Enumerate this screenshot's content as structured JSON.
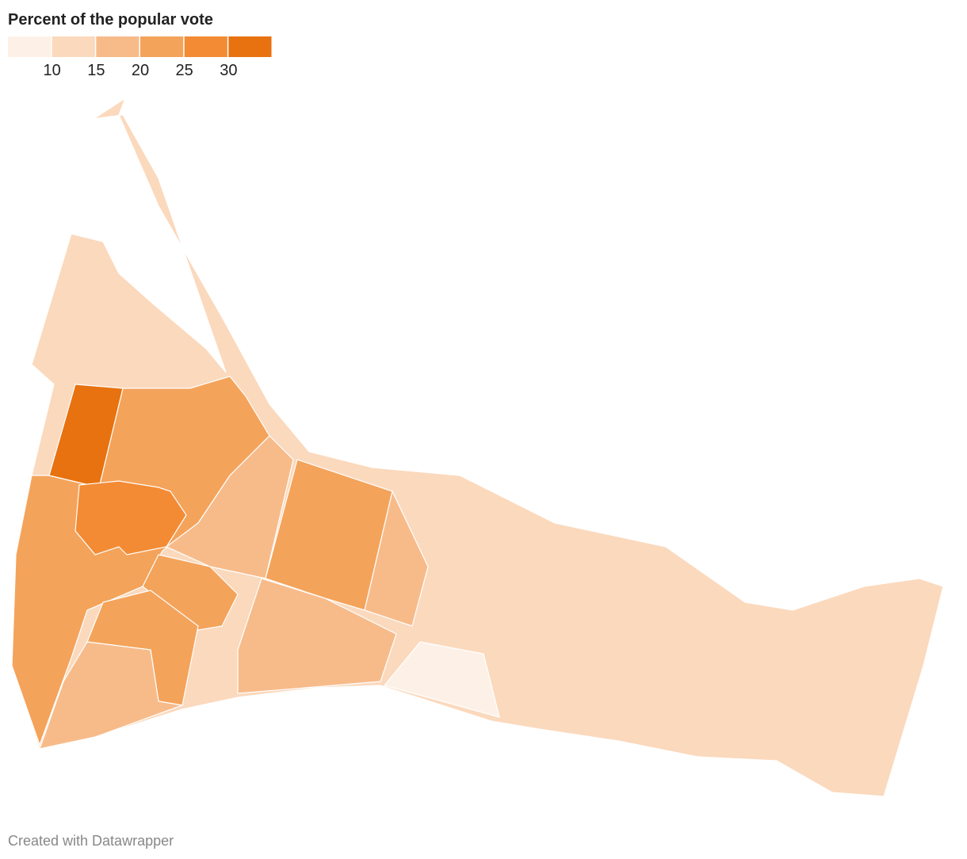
{
  "legend": {
    "title": "Percent of the popular vote",
    "colors": [
      "#fdf1e7",
      "#fbd9bd",
      "#f7bb8a",
      "#f4a35a",
      "#f38b35",
      "#e8720f"
    ],
    "ticks": [
      10,
      15,
      20,
      25,
      30
    ]
  },
  "footer": "Created with Datawrapper"
}
